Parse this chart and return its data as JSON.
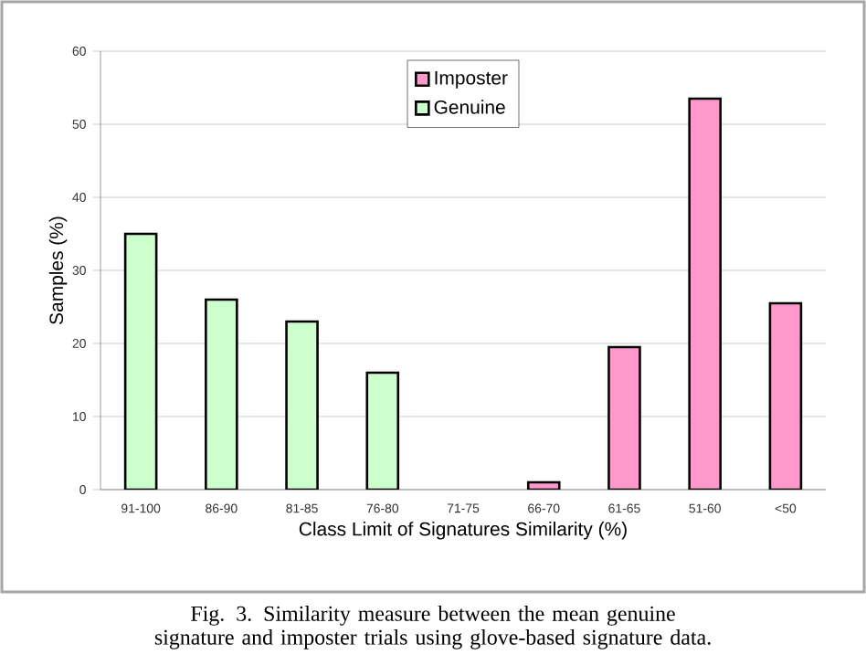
{
  "chart_data": {
    "type": "bar",
    "xlabel": "Class Limit of Signatures Similarity (%)",
    "ylabel": "Samples (%)",
    "categories": [
      "91-100",
      "86-90",
      "81-85",
      "76-80",
      "71-75",
      "66-70",
      "61-65",
      "51-60",
      "<50"
    ],
    "series": [
      {
        "name": "Imposter",
        "color": "#ff99cc",
        "values": [
          null,
          null,
          null,
          null,
          null,
          1,
          19.5,
          53.5,
          25.5
        ]
      },
      {
        "name": "Genuine",
        "color": "#ccffcc",
        "values": [
          35,
          26,
          23,
          16,
          null,
          null,
          null,
          null,
          null
        ]
      }
    ],
    "ylim": [
      0,
      60
    ],
    "yticks": [
      0,
      10,
      20,
      30,
      40,
      50,
      60
    ],
    "grid": "y",
    "legend": "top",
    "annotations": [
      "Fig. 3. Similarity measure between the mean genuine signature and imposter trials using glove-based signature data."
    ]
  }
}
